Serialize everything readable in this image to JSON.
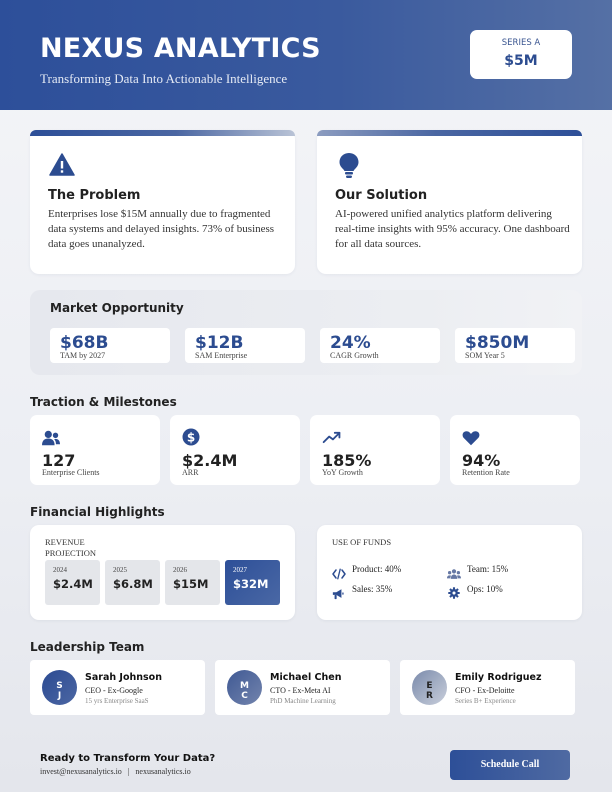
{
  "header": {
    "brand": "NEXUS ANALYTICS",
    "tagline": "Transforming Data Into Actionable Intelligence",
    "series_label": "SERIES A",
    "series_value": "$5M"
  },
  "problem": {
    "title": "The Problem",
    "body": "Enterprises lose $15M annually due to fragmented data systems and delayed insights. 73% of business data goes unanalyzed.",
    "icon": "warning-icon"
  },
  "solution": {
    "title": "Our Solution",
    "body": "AI-powered unified analytics platform delivering real-time insights with 95% accuracy. One dashboard for all data sources.",
    "icon": "lightbulb-icon"
  },
  "market": {
    "title": "Market Opportunity",
    "items": [
      {
        "value": "$68B",
        "label": "TAM by 2027"
      },
      {
        "value": "$12B",
        "label": "SAM Enterprise"
      },
      {
        "value": "24%",
        "label": "CAGR Growth"
      },
      {
        "value": "$850M",
        "label": "SOM Year 5"
      }
    ]
  },
  "traction": {
    "title": "Traction & Milestones",
    "items": [
      {
        "icon": "users-icon",
        "value": "127",
        "label": "Enterprise Clients"
      },
      {
        "icon": "dollar-icon",
        "value": "$2.4M",
        "label": "ARR"
      },
      {
        "icon": "trend-up-icon",
        "value": "185%",
        "label": "YoY Growth"
      },
      {
        "icon": "heart-icon",
        "value": "94%",
        "label": "Retention Rate"
      }
    ]
  },
  "financial": {
    "title": "Financial Highlights",
    "revenue": {
      "title": "REVENUE PROJECTION",
      "years": [
        {
          "year": "2024",
          "value": "$2.4M"
        },
        {
          "year": "2025",
          "value": "$6.8M"
        },
        {
          "year": "2026",
          "value": "$15M"
        },
        {
          "year": "2027",
          "value": "$32M"
        }
      ]
    },
    "funds": {
      "title": "USE OF FUNDS",
      "items": [
        {
          "icon": "code-icon",
          "text": "Product: 40%"
        },
        {
          "icon": "team-icon",
          "text": "Team: 15%"
        },
        {
          "icon": "megaphone-icon",
          "text": "Sales: 35%"
        },
        {
          "icon": "gear-icon",
          "text": "Ops: 10%"
        }
      ]
    }
  },
  "leadership": {
    "title": "Leadership Team",
    "members": [
      {
        "initial1": "S",
        "initial2": "J",
        "name": "Sarah Johnson",
        "role": "CEO - Ex-Google",
        "exp": "15 yrs Enterprise SaaS"
      },
      {
        "initial1": "M",
        "initial2": "C",
        "name": "Michael Chen",
        "role": "CTO - Ex-Meta AI",
        "exp": "PhD Machine Learning"
      },
      {
        "initial1": "E",
        "initial2": "R",
        "name": "Emily Rodriguez",
        "role": "CFO - Ex-Deloitte",
        "exp": "Series B+ Experience"
      }
    ]
  },
  "footer": {
    "cta_title": "Ready to Transform Your Data?",
    "email": "invest@nexusanalytics.io",
    "separator": "|",
    "website": "nexusanalytics.io",
    "button": "Schedule Call"
  },
  "colors": {
    "primary": "#2d4f98",
    "accent": "#5570a5"
  }
}
